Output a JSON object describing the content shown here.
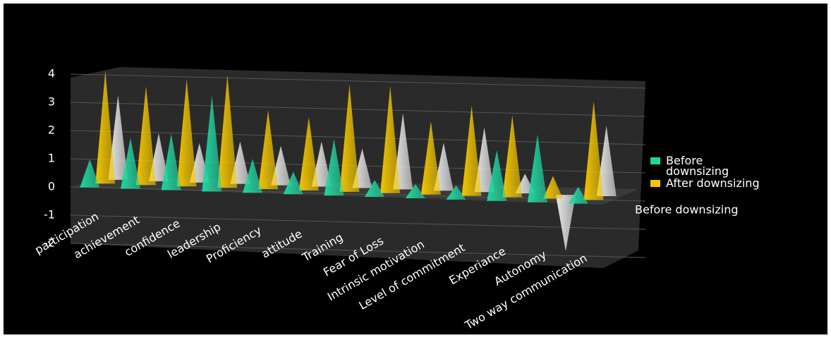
{
  "chart_data": {
    "type": "cone3d",
    "categories": [
      "participation",
      "achievement",
      "confidence",
      "leadership",
      "Proficiency",
      "attitude",
      "Training",
      "Fear of Loss",
      "Intrinsic motivation",
      "Level of commitment",
      "Experiance",
      "Autonomy",
      "Two way communication"
    ],
    "series": [
      {
        "name": "Before downsizing",
        "color": "#1fd6a0",
        "values": [
          1,
          1.8,
          2,
          3.4,
          1.2,
          0.8,
          2,
          0.6,
          0.5,
          0.5,
          1.8,
          2.4,
          0.6
        ]
      },
      {
        "name": "After downsizing",
        "color": "#f2c500",
        "values": [
          4,
          3.5,
          3.8,
          4,
          2.8,
          2.6,
          3.8,
          3.8,
          2.6,
          3.2,
          2.9,
          0.8,
          3.5
        ]
      },
      {
        "color": "#e8e8e8",
        "values": [
          3,
          1.7,
          1.4,
          1.5,
          1.4,
          1.6,
          1.4,
          2.7,
          1.7,
          2.3,
          0.7,
          -2,
          2.5
        ]
      }
    ],
    "depth_label": "Before downsizing",
    "ylim": [
      -2,
      4
    ],
    "yticks": [
      -2,
      -1,
      0,
      1,
      2,
      3,
      4
    ],
    "grid": true
  }
}
